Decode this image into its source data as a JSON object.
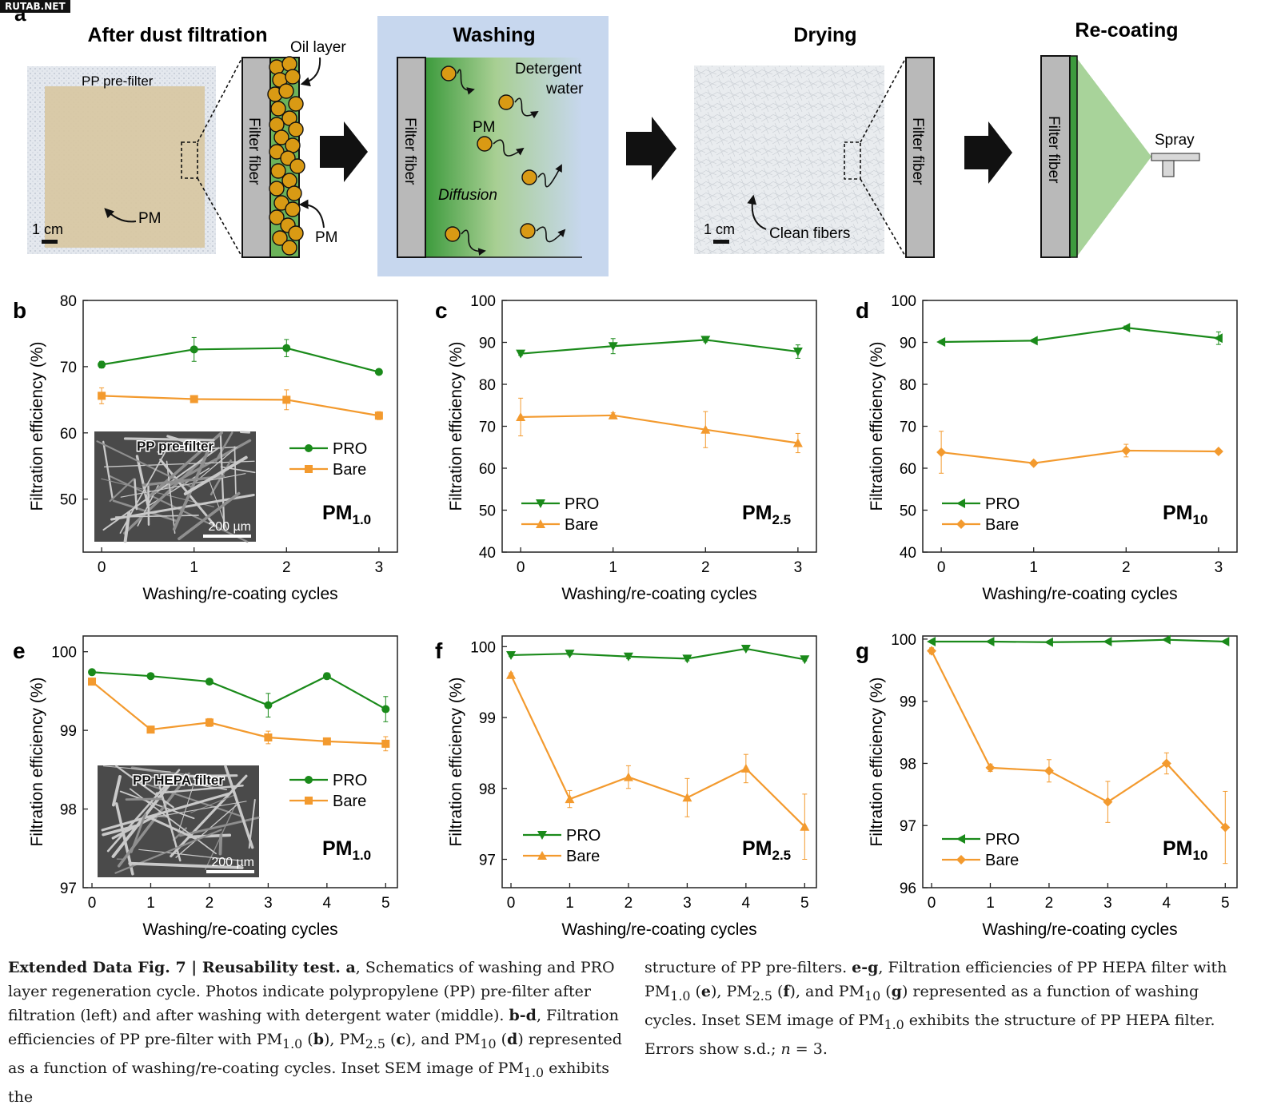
{
  "watermark": "RUTAB.NET",
  "colors": {
    "pro": "#1a8a1a",
    "bare": "#f39a2e",
    "particle": "#d99a14",
    "wash_bg": "#c7d7ee",
    "fiber": "#b9b9b9",
    "green": "#6cb35a"
  },
  "schematic": {
    "panel_letter": "a",
    "steps": {
      "after": {
        "title": "After dust filtration",
        "filter_label": "PP pre-filter",
        "pm_label": "PM",
        "scale": "1 cm",
        "fiber_label": "Filter fiber",
        "oil_label": "Oil layer",
        "pm_side_label": "PM"
      },
      "washing": {
        "title": "Washing",
        "fiber_label": "Filter fiber",
        "detergent_line1": "Detergent",
        "detergent_line2": "water",
        "pm_label": "PM",
        "diffusion_label": "Diffusion"
      },
      "drying": {
        "title": "Drying",
        "scale": "1 cm",
        "clean_label": "Clean fibers",
        "fiber_label": "Filter fiber"
      },
      "recoating": {
        "title": "Re-coating",
        "fiber_label": "Filter fiber",
        "spray_label": "Spray"
      }
    }
  },
  "chart_data": [
    {
      "id": "b",
      "type": "line",
      "panel": "b",
      "xlabel": "Washing/re-coating cycles",
      "ylabel": "Filtration efficiency (%)",
      "x": [
        0,
        1,
        2,
        3
      ],
      "xlim": [
        -0.2,
        3.2
      ],
      "ylim": [
        42,
        80
      ],
      "yticks": [
        50,
        60,
        70,
        80
      ],
      "pm_label": "PM",
      "pm_sub": "1.0",
      "legend_placement": "center-right",
      "marker": "square-circle",
      "inset": {
        "title": "PP pre-filter",
        "scale": "200 µm"
      },
      "series": [
        {
          "name": "PRO",
          "color": "#1a8a1a",
          "marker": "circle",
          "values": [
            70.3,
            72.6,
            72.8,
            69.2
          ],
          "errors": [
            0.5,
            1.8,
            1.3,
            0.4
          ]
        },
        {
          "name": "Bare",
          "color": "#f39a2e",
          "marker": "square",
          "values": [
            65.6,
            65.1,
            65.0,
            62.6
          ],
          "errors": [
            1.2,
            0.5,
            1.5,
            0.6
          ]
        }
      ]
    },
    {
      "id": "c",
      "type": "line",
      "panel": "c",
      "xlabel": "Washing/re-coating cycles",
      "ylabel": "Filtration efficiency (%)",
      "x": [
        0,
        1,
        2,
        3
      ],
      "xlim": [
        -0.2,
        3.2
      ],
      "ylim": [
        40,
        100
      ],
      "yticks": [
        40,
        50,
        60,
        70,
        80,
        90,
        100
      ],
      "pm_label": "PM",
      "pm_sub": "2.5",
      "legend_placement": "bottom-left",
      "series": [
        {
          "name": "PRO",
          "color": "#1a8a1a",
          "marker": "triangle-down",
          "values": [
            87.3,
            89.1,
            90.6,
            87.8
          ],
          "errors": [
            0.4,
            1.8,
            0.5,
            1.6
          ]
        },
        {
          "name": "Bare",
          "color": "#f39a2e",
          "marker": "triangle-up",
          "values": [
            72.2,
            72.6,
            69.2,
            66.0
          ],
          "errors": [
            4.5,
            0.6,
            4.3,
            2.3
          ]
        }
      ]
    },
    {
      "id": "d",
      "type": "line",
      "panel": "d",
      "xlabel": "Washing/re-coating cycles",
      "ylabel": "Filtration efficiency (%)",
      "x": [
        0,
        1,
        2,
        3
      ],
      "xlim": [
        -0.2,
        3.2
      ],
      "ylim": [
        40,
        100
      ],
      "yticks": [
        40,
        50,
        60,
        70,
        80,
        90,
        100
      ],
      "pm_label": "PM",
      "pm_sub": "10",
      "legend_placement": "bottom-left",
      "series": [
        {
          "name": "PRO",
          "color": "#1a8a1a",
          "marker": "triangle-left",
          "values": [
            90.1,
            90.4,
            93.5,
            91.0
          ],
          "errors": [
            0.3,
            0.3,
            0.4,
            1.5
          ]
        },
        {
          "name": "Bare",
          "color": "#f39a2e",
          "marker": "diamond",
          "values": [
            63.8,
            61.2,
            64.2,
            64.0
          ],
          "errors": [
            5.0,
            0.5,
            1.5,
            0.4
          ]
        }
      ]
    },
    {
      "id": "e",
      "type": "line",
      "panel": "e",
      "xlabel": "Washing/re-coating cycles",
      "ylabel": "Filtration efficiency (%)",
      "x": [
        0,
        1,
        2,
        3,
        4,
        5
      ],
      "xlim": [
        -0.15,
        5.2
      ],
      "ylim": [
        97,
        100.2
      ],
      "yticks": [
        97,
        98,
        99,
        100
      ],
      "pm_label": "PM",
      "pm_sub": "1.0",
      "legend_placement": "center-right",
      "inset": {
        "title": "PP HEPA filter",
        "scale": "200 µm"
      },
      "series": [
        {
          "name": "PRO",
          "color": "#1a8a1a",
          "marker": "circle",
          "values": [
            99.74,
            99.69,
            99.62,
            99.32,
            99.69,
            99.27
          ],
          "errors": [
            0.03,
            0.03,
            0.03,
            0.15,
            0.04,
            0.16
          ]
        },
        {
          "name": "Bare",
          "color": "#f39a2e",
          "marker": "square",
          "values": [
            99.62,
            99.01,
            99.1,
            98.91,
            98.86,
            98.83
          ],
          "errors": [
            0.03,
            0.03,
            0.05,
            0.08,
            0.03,
            0.09
          ]
        }
      ]
    },
    {
      "id": "f",
      "type": "line",
      "panel": "f",
      "xlabel": "Washing/re-coating cycles",
      "ylabel": "Filtration efficiency (%)",
      "x": [
        0,
        1,
        2,
        3,
        4,
        5
      ],
      "xlim": [
        -0.15,
        5.2
      ],
      "ylim": [
        96.6,
        100.15
      ],
      "yticks": [
        97,
        98,
        99,
        100
      ],
      "pm_label": "PM",
      "pm_sub": "2.5",
      "legend_placement": "bottom-left",
      "series": [
        {
          "name": "PRO",
          "color": "#1a8a1a",
          "marker": "triangle-down",
          "values": [
            99.88,
            99.9,
            99.86,
            99.83,
            99.97,
            99.82
          ],
          "errors": [
            0.02,
            0.02,
            0.03,
            0.03,
            0.02,
            0.02
          ]
        },
        {
          "name": "Bare",
          "color": "#f39a2e",
          "marker": "triangle-up",
          "values": [
            99.6,
            97.85,
            98.16,
            97.87,
            98.28,
            97.46
          ],
          "errors": [
            0.03,
            0.12,
            0.16,
            0.27,
            0.2,
            0.46
          ]
        }
      ]
    },
    {
      "id": "g",
      "type": "line",
      "panel": "g",
      "xlabel": "Washing/re-coating cycles",
      "ylabel": "Filtration efficiency (%)",
      "x": [
        0,
        1,
        2,
        3,
        4,
        5
      ],
      "xlim": [
        -0.15,
        5.2
      ],
      "ylim": [
        96,
        100.05
      ],
      "yticks": [
        96,
        97,
        98,
        99,
        100
      ],
      "pm_label": "PM",
      "pm_sub": "10",
      "legend_placement": "bottom-left",
      "series": [
        {
          "name": "PRO",
          "color": "#1a8a1a",
          "marker": "triangle-left",
          "values": [
            99.96,
            99.96,
            99.95,
            99.96,
            99.99,
            99.96
          ],
          "errors": [
            0.01,
            0.01,
            0.01,
            0.01,
            0.01,
            0.01
          ]
        },
        {
          "name": "Bare",
          "color": "#f39a2e",
          "marker": "diamond",
          "values": [
            99.81,
            97.93,
            97.88,
            97.38,
            98.0,
            96.97
          ],
          "errors": [
            0.05,
            0.06,
            0.18,
            0.33,
            0.17,
            0.58
          ]
        }
      ]
    }
  ],
  "caption": {
    "left": "<b>Extended Data Fig. 7 | Reusability test. a</b>, Schematics of washing and PRO layer regeneration cycle. Photos indicate polypropylene (PP) pre-filter after filtration (left) and after washing with detergent water (middle). <b>b-d</b>, Filtration efficiencies of PP pre-filter with PM<sub>1.0</sub> (<b>b</b>), PM<sub>2.5</sub> (<b>c</b>), and PM<sub>10</sub> (<b>d</b>) represented as a function of washing/re-coating cycles. Inset SEM image of PM<sub>1.0</sub> exhibits the",
    "right": "structure of PP pre-filters. <b>e-g</b>, Filtration efficiencies of PP HEPA filter with PM<sub>1.0</sub> (<b>e</b>), PM<sub>2.5</sub> (<b>f</b>), and PM<sub>10</sub> (<b>g</b>) represented as a function of washing cycles. Inset SEM image of PM<sub>1.0</sub> exhibits the structure of PP HEPA filter. Errors show s.d.; <i>n</i> = 3."
  }
}
